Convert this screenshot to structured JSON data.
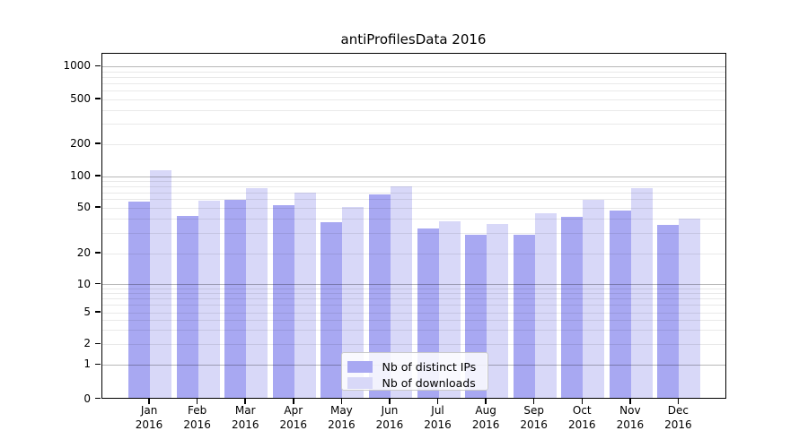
{
  "figure": {
    "title": "antiProfilesData 2016"
  },
  "chart_data": {
    "type": "bar",
    "title": "antiProfilesData 2016",
    "scale": "symlog",
    "categories": [
      "Jan",
      "Feb",
      "Mar",
      "Apr",
      "May",
      "Jun",
      "Jul",
      "Aug",
      "Sep",
      "Oct",
      "Nov",
      "Dec"
    ],
    "category_year": "2016",
    "series": [
      {
        "name": "Nb of distinct IPs",
        "color": "#a8a8f2",
        "values": [
          55,
          41,
          57,
          51,
          36,
          65,
          32,
          28,
          28,
          40,
          46,
          34
        ]
      },
      {
        "name": "Nb of downloads",
        "color": "#d8d8f8",
        "values": [
          110,
          56,
          74,
          67,
          49,
          77,
          37,
          35,
          43,
          58,
          74,
          39
        ]
      }
    ],
    "y_ticks": [
      0,
      1,
      2,
      5,
      10,
      20,
      50,
      100,
      200,
      500,
      1000
    ],
    "ylim": [
      0,
      1300
    ],
    "grid": true,
    "legend_position": "lower center inside"
  }
}
